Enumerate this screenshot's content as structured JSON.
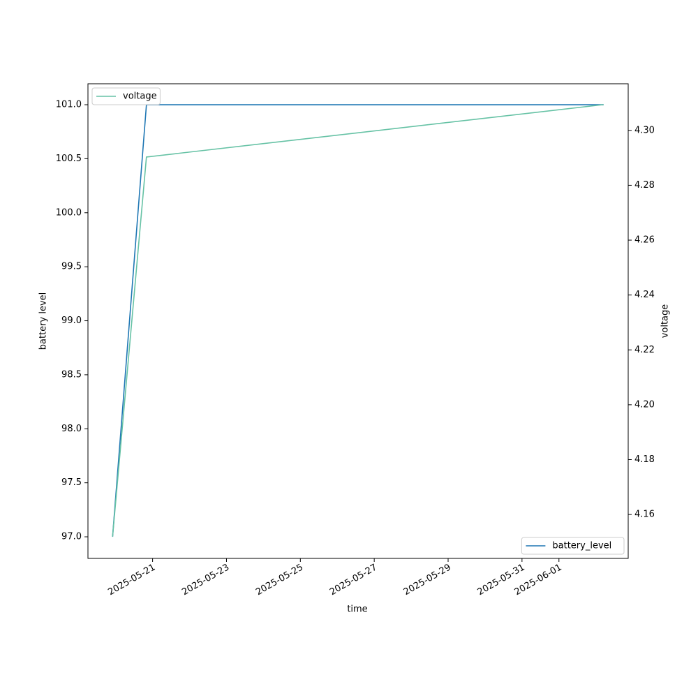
{
  "chart_data": {
    "type": "line",
    "x_label": "time",
    "y_label": "battery level",
    "y2_label": "voltage",
    "x": [
      "2025-05-19T22:00",
      "2025-05-20T20:00",
      "2025-06-02T05:00"
    ],
    "xlim": [
      "2025-05-19T06:00",
      "2025-06-02T21:00"
    ],
    "xticks": [
      "2025-05-21",
      "2025-05-23",
      "2025-05-25",
      "2025-05-27",
      "2025-05-29",
      "2025-05-31",
      "2025-06-01"
    ],
    "ylim": [
      96.8,
      101.194
    ],
    "yticks": [
      {
        "value": 97,
        "label": "97.0"
      },
      97.5,
      {
        "value": 98,
        "label": "98.0"
      },
      98.5,
      {
        "value": 99,
        "label": "99.0"
      },
      99.5,
      {
        "value": 100,
        "label": "100.0"
      },
      100.5,
      {
        "value": 101,
        "label": "101.0"
      }
    ],
    "y2lim": [
      4.144,
      4.317
    ],
    "y2ticks": [
      4.16,
      4.18,
      {
        "value": 4.2,
        "label": "4.20"
      },
      4.22,
      4.24,
      4.26,
      4.28,
      {
        "value": 4.3,
        "label": "4.30"
      }
    ],
    "series": [
      {
        "name": "battery_level",
        "color": "#1f77b4",
        "values": [
          97,
          101,
          101
        ],
        "legend_loc": "lower right"
      },
      {
        "name": "voltage",
        "color": "#66c2a5",
        "values": [
          4.1519,
          4.2903,
          4.3094
        ],
        "axis": "y2",
        "legend_loc": "upper left"
      }
    ]
  }
}
